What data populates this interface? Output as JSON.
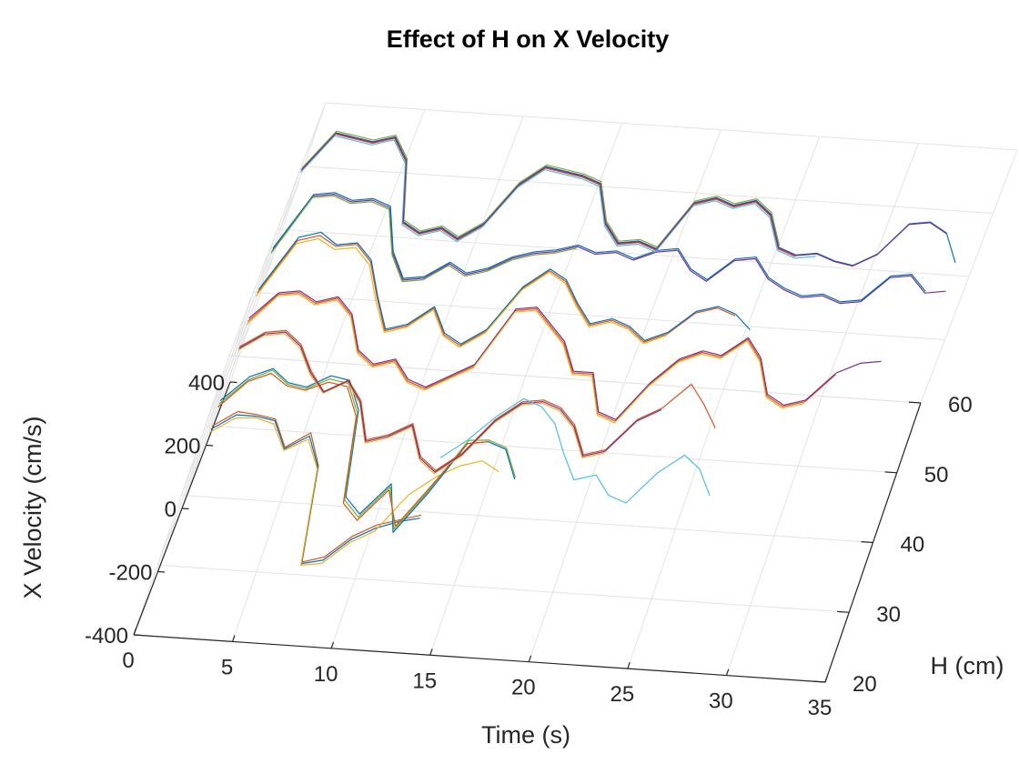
{
  "chart_data": {
    "type": "line3d",
    "title": "Effect of H on  X Velocity",
    "xlabel": "Time (s)",
    "ylabel": "H (cm)",
    "zlabel": "X Velocity (cm/s)",
    "xlim": [
      0,
      35
    ],
    "ylim": [
      20,
      60
    ],
    "zlim": [
      -400,
      400
    ],
    "xticks": [
      "0",
      "5",
      "10",
      "15",
      "20",
      "25",
      "30",
      "35"
    ],
    "yticks": [
      "20",
      "30",
      "40",
      "50",
      "60"
    ],
    "zticks": [
      "-400",
      "-200",
      "0",
      "200",
      "400"
    ],
    "grid": true,
    "palette": [
      "#0072BD",
      "#D95319",
      "#EDB120",
      "#7E2F8E",
      "#77AC30",
      "#4DBEEE",
      "#A2142F"
    ],
    "series": [
      {
        "h": 25,
        "color": "#D95319",
        "x": [
          0,
          1,
          2,
          3,
          4,
          5,
          6,
          7,
          8,
          9,
          10,
          11,
          12
        ],
        "z": [
          150,
          200,
          195,
          185,
          100,
          150,
          50,
          -250,
          -230,
          -160,
          -120,
          -100,
          -80
        ]
      },
      {
        "h": 25,
        "color": "#0072BD",
        "x": [
          0,
          1,
          2,
          3,
          4,
          5,
          6,
          7,
          8,
          9,
          10,
          11,
          12
        ],
        "z": [
          140,
          190,
          190,
          180,
          95,
          140,
          45,
          -255,
          -240,
          -170,
          -130,
          -105,
          -90
        ]
      },
      {
        "h": 25,
        "color": "#EDB120",
        "x": [
          0,
          1,
          2,
          3,
          4,
          5,
          6,
          7,
          8,
          9,
          10,
          11,
          12,
          13,
          14,
          15
        ],
        "z": [
          130,
          180,
          185,
          170,
          90,
          130,
          40,
          -260,
          -250,
          -180,
          -140,
          -20,
          40,
          80,
          100,
          70
        ]
      },
      {
        "h": 30,
        "color": "#0072BD",
        "x": [
          0,
          1,
          2,
          3,
          4,
          5,
          6,
          7,
          8,
          9,
          10,
          11,
          12,
          13,
          14,
          15,
          16
        ],
        "z": [
          120,
          200,
          230,
          190,
          180,
          220,
          210,
          120,
          -150,
          -200,
          -100,
          -250,
          -120,
          40,
          50,
          30,
          -60
        ]
      },
      {
        "h": 30,
        "color": "#77AC30",
        "x": [
          0,
          1,
          2,
          3,
          4,
          5,
          6,
          7,
          8,
          9,
          10,
          11,
          12,
          13,
          14,
          15,
          16
        ],
        "z": [
          110,
          190,
          225,
          185,
          175,
          210,
          200,
          110,
          -160,
          -210,
          -110,
          -240,
          -110,
          50,
          55,
          35,
          -55
        ]
      },
      {
        "h": 30,
        "color": "#D95319",
        "x": [
          0,
          1,
          2,
          3,
          4,
          5,
          6,
          7,
          8,
          9,
          10,
          11,
          12,
          13,
          14
        ],
        "z": [
          100,
          185,
          215,
          180,
          170,
          200,
          190,
          100,
          -170,
          -220,
          -120,
          -230,
          -100,
          40,
          50
        ]
      },
      {
        "h": 35,
        "color": "#D95319",
        "x": [
          0,
          1,
          2,
          3,
          4,
          5,
          6,
          7,
          8,
          9,
          10,
          11,
          12,
          13,
          14,
          15,
          16,
          17,
          18,
          19,
          20,
          21,
          22,
          23,
          24,
          25
        ],
        "z": [
          180,
          230,
          240,
          200,
          120,
          60,
          100,
          40,
          -80,
          -60,
          -20,
          -120,
          -160,
          -100,
          10,
          70,
          80,
          60,
          10,
          -80,
          -60,
          40,
          80,
          160,
          100,
          30
        ]
      },
      {
        "h": 35,
        "color": "#EDB120",
        "x": [
          0,
          1,
          2,
          3,
          4,
          5,
          6,
          7,
          8,
          9,
          10,
          11,
          12,
          13,
          14,
          15,
          16,
          17,
          18,
          19,
          20
        ],
        "z": [
          170,
          220,
          230,
          190,
          110,
          55,
          95,
          30,
          -90,
          -70,
          -30,
          -130,
          -170,
          -110,
          0,
          60,
          70,
          50,
          0,
          -90,
          -70
        ]
      },
      {
        "h": 35,
        "color": "#7E2F8E",
        "x": [
          0,
          1,
          2,
          3,
          4,
          5,
          6,
          7,
          8,
          9,
          10,
          11,
          12,
          13,
          14,
          15,
          16,
          17,
          18,
          19,
          20,
          21,
          22
        ],
        "z": [
          175,
          225,
          235,
          195,
          115,
          58,
          98,
          35,
          -85,
          -65,
          -25,
          -125,
          -165,
          -105,
          5,
          65,
          75,
          55,
          5,
          -85,
          -65,
          35,
          75
        ]
      },
      {
        "h": 35,
        "color": "#4DBEEE",
        "x": [
          12,
          13,
          14,
          15,
          16,
          17,
          18,
          19,
          20,
          21,
          22,
          23,
          24,
          25,
          26
        ],
        "z": [
          -120,
          -60,
          20,
          80,
          60,
          10,
          -80,
          -160,
          -140,
          -200,
          -220,
          -120,
          -60,
          -100,
          -180
        ]
      },
      {
        "h": 40,
        "color": "#D95319",
        "x": [
          0,
          1,
          2,
          3,
          4,
          5,
          6,
          7,
          8,
          9,
          10,
          11,
          12,
          13,
          14,
          15,
          16,
          17,
          18,
          19,
          20,
          21,
          22,
          23,
          24,
          25,
          26,
          27,
          28,
          29,
          30
        ],
        "z": [
          150,
          240,
          250,
          220,
          240,
          190,
          80,
          40,
          60,
          0,
          -20,
          20,
          60,
          240,
          250,
          200,
          150,
          60,
          60,
          -60,
          -80,
          40,
          120,
          150,
          140,
          200,
          140,
          30,
          0,
          20,
          110
        ]
      },
      {
        "h": 40,
        "color": "#7E2F8E",
        "x": [
          0,
          1,
          2,
          3,
          4,
          5,
          6,
          7,
          8,
          9,
          10,
          11,
          12,
          13,
          14,
          15,
          16,
          17,
          18,
          19,
          20,
          21,
          22,
          23,
          24,
          25,
          26,
          27,
          28,
          29,
          30,
          31,
          32
        ],
        "z": [
          160,
          245,
          255,
          225,
          245,
          195,
          85,
          45,
          65,
          5,
          -15,
          25,
          65,
          245,
          255,
          205,
          155,
          65,
          65,
          -55,
          -75,
          45,
          125,
          155,
          145,
          205,
          145,
          35,
          5,
          25,
          115,
          150,
          160
        ]
      },
      {
        "h": 40,
        "color": "#EDB120",
        "x": [
          0,
          1,
          2,
          3,
          4,
          5,
          6,
          7,
          8,
          9,
          10,
          11,
          12,
          13,
          14,
          15,
          16,
          17,
          18,
          19,
          20,
          21,
          22,
          23,
          24,
          25,
          26,
          27,
          28,
          29
        ],
        "z": [
          140,
          235,
          245,
          215,
          235,
          185,
          75,
          35,
          55,
          -5,
          -25,
          15,
          55,
          235,
          245,
          195,
          145,
          55,
          55,
          -65,
          -85,
          35,
          115,
          145,
          135,
          195,
          135,
          25,
          -5,
          15
        ]
      },
      {
        "h": 45,
        "color": "#D95319",
        "x": [
          0,
          1,
          2,
          3,
          4,
          5,
          6,
          7,
          8,
          9,
          10,
          11,
          12,
          13,
          14,
          15,
          16,
          17,
          18,
          19,
          20,
          21,
          22,
          23,
          24
        ],
        "z": [
          130,
          300,
          320,
          290,
          300,
          250,
          140,
          40,
          60,
          120,
          40,
          10,
          60,
          200,
          260,
          230,
          160,
          100,
          120,
          100,
          60,
          90,
          160,
          180,
          160
        ]
      },
      {
        "h": 45,
        "color": "#0072BD",
        "x": [
          0,
          1,
          2,
          3,
          4,
          5,
          6,
          7,
          8,
          9,
          10,
          11,
          12,
          13,
          14,
          15,
          16,
          17,
          18,
          19,
          20,
          21,
          22,
          23,
          24,
          25
        ],
        "z": [
          140,
          310,
          330,
          295,
          305,
          255,
          145,
          45,
          65,
          125,
          45,
          15,
          65,
          205,
          265,
          235,
          165,
          105,
          125,
          105,
          65,
          95,
          165,
          185,
          165,
          120
        ]
      },
      {
        "h": 45,
        "color": "#EDB120",
        "x": [
          0,
          1,
          2,
          3,
          4,
          5,
          6,
          7,
          8,
          9,
          10,
          11,
          12,
          13,
          14,
          15,
          16,
          17,
          18,
          19,
          20,
          21
        ],
        "z": [
          120,
          290,
          310,
          280,
          290,
          240,
          130,
          35,
          55,
          115,
          35,
          5,
          55,
          195,
          255,
          225,
          155,
          95,
          115,
          95,
          55,
          85
        ]
      },
      {
        "h": 50,
        "color": "#7E2F8E",
        "x": [
          0,
          1,
          2,
          3,
          4,
          5,
          6,
          7,
          8,
          9,
          10,
          11,
          12,
          13,
          14,
          15,
          16,
          17,
          18,
          19,
          20,
          21,
          22,
          23,
          24,
          25,
          26,
          27,
          28,
          29,
          30,
          31,
          32,
          33,
          34
        ],
        "z": [
          150,
          330,
          340,
          320,
          330,
          310,
          170,
          90,
          100,
          150,
          120,
          140,
          180,
          200,
          210,
          230,
          210,
          220,
          200,
          230,
          240,
          180,
          150,
          220,
          230,
          170,
          140,
          120,
          130,
          110,
          120,
          200,
          210,
          160,
          170
        ]
      },
      {
        "h": 50,
        "color": "#0072BD",
        "x": [
          0,
          1,
          2,
          3,
          4,
          5,
          6,
          7,
          8,
          9,
          10,
          11,
          12,
          13,
          14,
          15,
          16,
          17,
          18,
          19,
          20,
          21,
          22,
          23,
          24,
          25,
          26,
          27,
          28,
          29,
          30,
          31,
          32,
          33
        ],
        "z": [
          160,
          335,
          345,
          325,
          335,
          315,
          175,
          95,
          105,
          155,
          125,
          145,
          185,
          205,
          215,
          235,
          215,
          225,
          205,
          235,
          245,
          185,
          155,
          225,
          235,
          175,
          145,
          125,
          135,
          115,
          125,
          205,
          215,
          165
        ]
      },
      {
        "h": 50,
        "color": "#77AC30",
        "x": [
          0,
          1,
          2,
          3,
          4,
          5,
          6,
          7,
          8,
          9,
          10,
          11,
          12,
          13,
          14,
          15
        ],
        "z": [
          145,
          325,
          335,
          315,
          325,
          305,
          165,
          85,
          95,
          145,
          115,
          135,
          175,
          195,
          205,
          225
        ]
      },
      {
        "h": 55,
        "color": "#0072BD",
        "x": [
          0,
          1,
          2,
          3,
          4,
          5,
          6,
          7,
          8,
          9,
          10,
          11,
          12,
          13,
          14,
          15,
          16,
          17,
          18,
          19,
          20,
          21,
          22,
          23,
          24,
          25,
          26,
          27,
          28,
          29,
          30,
          31,
          32,
          33,
          34
        ],
        "z": [
          300,
          420,
          410,
          400,
          420,
          350,
          160,
          130,
          150,
          120,
          170,
          300,
          360,
          350,
          340,
          320,
          200,
          140,
          150,
          130,
          280,
          300,
          280,
          300,
          260,
          160,
          140,
          150,
          130,
          120,
          160,
          260,
          270,
          240,
          150
        ]
      },
      {
        "h": 55,
        "color": "#D95319",
        "x": [
          0,
          1,
          2,
          3,
          4,
          5,
          6,
          7,
          8,
          9,
          10,
          11,
          12,
          13,
          14,
          15,
          16,
          17,
          18,
          19,
          20,
          21,
          22,
          23,
          24,
          25,
          26
        ],
        "z": [
          295,
          415,
          405,
          395,
          415,
          345,
          155,
          125,
          145,
          115,
          165,
          295,
          355,
          345,
          335,
          315,
          195,
          135,
          145,
          125,
          275,
          295,
          275,
          295,
          255,
          155,
          135
        ]
      },
      {
        "h": 55,
        "color": "#77AC30",
        "x": [
          0,
          1,
          2,
          3,
          4,
          5,
          6,
          7,
          8,
          9,
          10,
          11,
          12,
          13,
          14,
          15,
          16,
          17,
          18,
          19,
          20,
          21,
          22,
          23,
          24,
          25
        ],
        "z": [
          305,
          425,
          415,
          405,
          425,
          355,
          165,
          135,
          155,
          125,
          175,
          305,
          365,
          355,
          345,
          325,
          205,
          145,
          155,
          135,
          285,
          305,
          285,
          305,
          265,
          165
        ]
      },
      {
        "h": 55,
        "color": "#4DBEEE",
        "x": [
          0,
          1,
          2,
          3,
          4,
          5,
          6,
          7,
          8,
          9,
          10,
          11,
          12,
          13,
          14,
          15,
          16,
          17,
          18,
          19,
          20,
          21,
          22,
          23,
          24,
          25,
          26,
          27
        ],
        "z": [
          290,
          410,
          400,
          390,
          410,
          340,
          150,
          120,
          140,
          110,
          160,
          290,
          350,
          340,
          330,
          310,
          190,
          130,
          140,
          120,
          270,
          290,
          270,
          290,
          250,
          150,
          130,
          140
        ]
      },
      {
        "h": 55,
        "color": "#7E2F8E",
        "x": [
          0,
          1,
          2,
          3,
          4,
          5,
          6,
          7,
          8,
          9,
          10,
          11,
          12,
          13,
          14,
          15,
          16,
          17,
          18,
          19,
          20,
          21,
          22,
          23,
          24,
          25,
          26,
          27,
          28,
          29,
          30,
          31,
          32,
          33
        ],
        "z": [
          298,
          418,
          408,
          398,
          418,
          348,
          158,
          128,
          148,
          118,
          168,
          298,
          358,
          348,
          338,
          318,
          198,
          138,
          148,
          128,
          278,
          298,
          278,
          298,
          258,
          158,
          138,
          148,
          128,
          118,
          158,
          258,
          268,
          238
        ]
      }
    ]
  }
}
